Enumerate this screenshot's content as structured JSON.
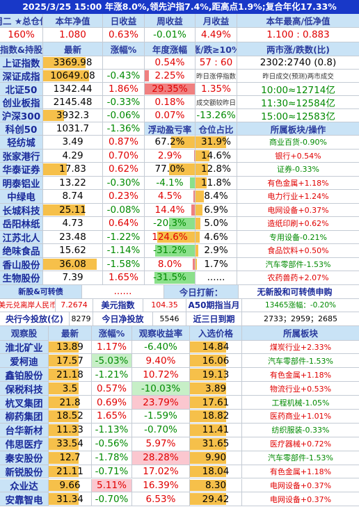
{
  "banner": "2025/3/25 15:00 年涨8.0%,领先沪指7.4%,距高点1.9%;复合年化17.33%",
  "summary_header": [
    "周二 ★总仓位",
    "本年净值",
    "日收益",
    "周收益",
    "月收益",
    "本年最高/低净值"
  ],
  "summary_values": [
    {
      "t": "160%",
      "c": "red"
    },
    {
      "t": "1.080",
      "c": "red"
    },
    {
      "t": "0.63%",
      "c": "red"
    },
    {
      "t": "-0.01%",
      "c": "grn"
    },
    {
      "t": "4.49%",
      "c": "red"
    },
    {
      "t": "1.100 : 0.883",
      "c": "red"
    }
  ],
  "index_header": [
    "指数&持股",
    "最新",
    "涨幅%",
    "年度涨幅",
    "涨/跌≥10%",
    "两市涨/跌数(比)"
  ],
  "indices": [
    {
      "name": "上证指数",
      "latest": "3369.98",
      "latest_pct": 0.72,
      "chg": "",
      "year": "0.54%",
      "year_c": "red",
      "s5": "57 : 60",
      "s5c": "red",
      "s6": "2302:2740 (0.8)",
      "s6c": "blk"
    },
    {
      "name": "深证成指",
      "latest": "10649.08",
      "latest_pct": 0.78,
      "chg": "-0.43%",
      "chg_c": "grn",
      "year": "2.25%",
      "year_c": "red",
      "year_bar": 0.08,
      "s5": "昨日涨停指数",
      "s5c": "tiny",
      "s6": "昨日成交(预测)两市成交",
      "s6c": "tiny"
    },
    {
      "name": "北证50",
      "latest": "1342.44",
      "latest_pct": 0,
      "chg": "1.86%",
      "chg_c": "red",
      "year": "29.35%",
      "year_c": "red",
      "year_bar": 1.0,
      "s5": "1.35%",
      "s5c": "red",
      "s6": "10:00≈12714亿",
      "s6c": "grn"
    },
    {
      "name": "创业板指",
      "latest": "2145.48",
      "latest_pct": 0,
      "chg": "-0.33%",
      "chg_c": "grn",
      "year": "0.18%",
      "year_c": "red",
      "s5": "成交额较昨日",
      "s5c": "tiny",
      "s6": "11:30≈12584亿",
      "s6c": "grn"
    },
    {
      "name": "沪深300",
      "latest": "3932.3",
      "latest_pct": 0.35,
      "chg": "-0.06%",
      "chg_c": "grn",
      "year": "0.07%",
      "year_c": "red",
      "s5": "-13.26%",
      "s5c": "grn",
      "s6": "15:00≈12583亿",
      "s6c": "grn"
    },
    {
      "name": "科创50",
      "latest": "1031.7",
      "latest_pct": 0,
      "chg": "-1.36%",
      "chg_c": "grn",
      "year": "浮动盈亏率",
      "year_c": "hdr",
      "s5": "仓位占比",
      "s5c": "hdr",
      "s6": "所属板块/操作",
      "s6c": "hdr"
    }
  ],
  "holdings": [
    {
      "name": "轻纺城",
      "latest": "3.49",
      "chg": "0.87%",
      "chg_c": "red",
      "pnl": "67.2%",
      "pnl_c": "blk",
      "pnl_v": 67.2,
      "pos": "31.9%",
      "pos_v": 31.9,
      "sector": "商业百货-0.90%",
      "sector_c": "grn"
    },
    {
      "name": "张家港行",
      "latest": "4.29",
      "chg": "0.70%",
      "chg_c": "red",
      "pnl": "2.9%",
      "pnl_c": "red",
      "pnl_v": 2.9,
      "pos": "14.6%",
      "pos_v": 14.6,
      "sector": "银行+0.54%",
      "sector_c": "red"
    },
    {
      "name": "华泰证券",
      "latest": "17.83",
      "latest_pct": 0.4,
      "chg": "0.62%",
      "chg_c": "red",
      "pnl": "77.0%",
      "pnl_c": "blk",
      "pnl_v": 77.0,
      "pos": "12.8%",
      "pos_v": 12.8,
      "sector": "证券-0.33%",
      "sector_c": "grn"
    },
    {
      "name": "明泰铝业",
      "latest": "13.22",
      "chg": "-0.30%",
      "chg_c": "grn",
      "pnl": "-4.1%",
      "pnl_c": "grn",
      "pnl_v": -4.1,
      "pos": "11.8%",
      "pos_v": 11.8,
      "sector": "有色金属+1.18%",
      "sector_c": "red"
    },
    {
      "name": "中绿电",
      "latest": "8.74",
      "chg": "0.23%",
      "chg_c": "red",
      "pnl": "4.5%",
      "pnl_c": "red",
      "pnl_v": 4.5,
      "pos": "8.4%",
      "pos_v": 8.4,
      "sector": "电力行业+1.24%",
      "sector_c": "red"
    },
    {
      "name": "长城科技",
      "latest": "25.11",
      "latest_pct": 0.7,
      "chg": "-0.08%",
      "chg_c": "grn",
      "pnl": "14.4%",
      "pnl_c": "red",
      "pnl_v": 14.4,
      "pos": "6.9%",
      "pos_v": 6.9,
      "sector": "电网设备+0.37%",
      "sector_c": "red"
    },
    {
      "name": "岳阳林纸",
      "latest": "4.73",
      "chg": "0.64%",
      "chg_c": "red",
      "pnl": "-20.3%",
      "pnl_c": "grn",
      "pnl_v": -20.3,
      "pos": "5.0%",
      "pos_v": 5.0,
      "sector": "造纸印刷+0.62%",
      "sector_c": "red"
    },
    {
      "name": "江苏北人",
      "latest": "23.48",
      "chg": "-1.22%",
      "chg_c": "grn",
      "pnl": "124.6%",
      "pnl_c": "red",
      "pnl_v": 124.6,
      "pos": "4.6%",
      "pos_v": 4.6,
      "sector": "专用设备-0.21%",
      "sector_c": "grn"
    },
    {
      "name": "绝味食品",
      "latest": "15.62",
      "chg": "-1.14%",
      "chg_c": "grn",
      "pnl": "-31.2%",
      "pnl_c": "grn",
      "pnl_v": -31.2,
      "pos": "2.9%",
      "pos_v": 2.9,
      "sector": "食品饮料+0.50%",
      "sector_c": "red"
    },
    {
      "name": "香山股份",
      "latest": "36.08",
      "latest_pct": 0.9,
      "chg": "-1.58%",
      "chg_c": "grn",
      "pnl": "8.0%",
      "pnl_c": "red",
      "pnl_v": 8.0,
      "pos": "1.7%",
      "pos_v": 1.7,
      "sector": "汽车零部件-1.53%",
      "sector_c": "grn"
    },
    {
      "name": "生物股份",
      "latest": "7.39",
      "chg": "1.65%",
      "chg_c": "red",
      "pnl": "-31.5%",
      "pnl_c": "grn",
      "pnl_v": -31.5,
      "pos": "......",
      "pos_v": 0,
      "sector": "农药兽药+2.07%",
      "sector_c": "red"
    }
  ],
  "convert_row": {
    "name": "新股&可转债",
    "dots": "......",
    "label": "今日打新：",
    "value": "无新股和可转债申购"
  },
  "fx_row": {
    "a": "美元兑离岸人民币",
    "b": "7.2674",
    "c": "美元指数",
    "d": "104.35",
    "e": "A50期指当月",
    "f": "13465涨幅：-0.20%"
  },
  "central_row": {
    "a": "央行今投放(亿)",
    "b": "8279",
    "c": "今日净投放",
    "d": "5546",
    "e": "近三日到期",
    "f": "2733；2959；2685"
  },
  "watch_header": [
    "观察股",
    "最新",
    "涨幅%",
    "观察收益率",
    "入选价格",
    "所属板块"
  ],
  "watch": [
    {
      "name": "淮北矿业",
      "latest": "13.89",
      "chg": "1.17%",
      "chg_c": "red",
      "ret": "-6.40%",
      "ret_c": "grn",
      "ret_v": -6.4,
      "price": "14.84",
      "sector": "煤炭行业+2.33%",
      "sector_c": "red"
    },
    {
      "name": "爱柯迪",
      "latest": "17.57",
      "chg": "-5.03%",
      "chg_c": "grn",
      "chg_hl": "grn",
      "ret": "9.40%",
      "ret_c": "red",
      "ret_v": 9.4,
      "price": "16.06",
      "sector": "汽车零部件-1.53%",
      "sector_c": "grn"
    },
    {
      "name": "鑫铂股份",
      "latest": "21.18",
      "chg": "-1.21%",
      "chg_c": "grn",
      "ret": "10.72%",
      "ret_c": "red",
      "ret_v": 10.72,
      "price": "19.13",
      "sector": "有色金属+1.18%",
      "sector_c": "red"
    },
    {
      "name": "保税科技",
      "latest": "3.5",
      "chg": "0.57%",
      "chg_c": "red",
      "ret": "-10.03%",
      "ret_c": "grn",
      "ret_v": -10.03,
      "ret_hl": "grn",
      "price": "3.89",
      "sector": "物流行业+0.53%",
      "sector_c": "red"
    },
    {
      "name": "杭叉集团",
      "latest": "21.8",
      "chg": "0.69%",
      "chg_c": "red",
      "ret": "23.79%",
      "ret_c": "red",
      "ret_v": 23.79,
      "ret_hl": "red",
      "price": "17.61",
      "sector": "工程机械-1.05%",
      "sector_c": "grn"
    },
    {
      "name": "柳药集团",
      "latest": "18.52",
      "chg": "1.65%",
      "chg_c": "red",
      "ret": "-1.59%",
      "ret_c": "grn",
      "ret_v": -1.59,
      "price": "18.82",
      "sector": "医药商业+1.01%",
      "sector_c": "red"
    },
    {
      "name": "台华新材",
      "latest": "11.33",
      "chg": "-1.13%",
      "chg_c": "grn",
      "ret": "-0.70%",
      "ret_c": "grn",
      "ret_v": -0.7,
      "price": "11.41",
      "sector": "纺织服装-0.33%",
      "sector_c": "grn"
    },
    {
      "name": "伟思医疗",
      "latest": "33.54",
      "chg": "-0.56%",
      "chg_c": "grn",
      "ret": "5.97%",
      "ret_c": "red",
      "ret_v": 5.97,
      "price": "31.65",
      "sector": "医疗器械+0.72%",
      "sector_c": "red"
    },
    {
      "name": "秦安股份",
      "latest": "12.7",
      "chg": "-1.78%",
      "chg_c": "grn",
      "ret": "28.28%",
      "ret_c": "red",
      "ret_v": 28.28,
      "ret_hl": "red",
      "price": "9.90",
      "sector": "汽车零部件-1.53%",
      "sector_c": "grn"
    },
    {
      "name": "新锐股份",
      "latest": "21.11",
      "chg": "-0.71%",
      "chg_c": "grn",
      "ret": "17.02%",
      "ret_c": "red",
      "ret_v": 17.02,
      "price": "18.04",
      "sector": "有色金属+1.18%",
      "sector_c": "red"
    },
    {
      "name": "众业达",
      "latest": "9.66",
      "chg": "5.11%",
      "chg_c": "red",
      "chg_hl": "red",
      "ret": "16.39%",
      "ret_c": "red",
      "ret_v": 16.39,
      "price": "8.30",
      "sector": "电网设备+0.37%",
      "sector_c": "red"
    },
    {
      "name": "安靠智电",
      "latest": "31.34",
      "chg": "-0.70%",
      "chg_c": "grn",
      "ret": "6.53%",
      "ret_c": "red",
      "ret_v": 6.53,
      "price": "29.42",
      "sector": "电网设备+0.37%",
      "sector_c": "red"
    }
  ],
  "colors": {
    "red": "#e00000",
    "green": "#008a00",
    "header_bg": "#c9e3f6",
    "banner_bg": "#1838c8",
    "bar_orange": "#f6c04a",
    "bar_red": "#f08080",
    "bar_green": "#8be08b"
  }
}
